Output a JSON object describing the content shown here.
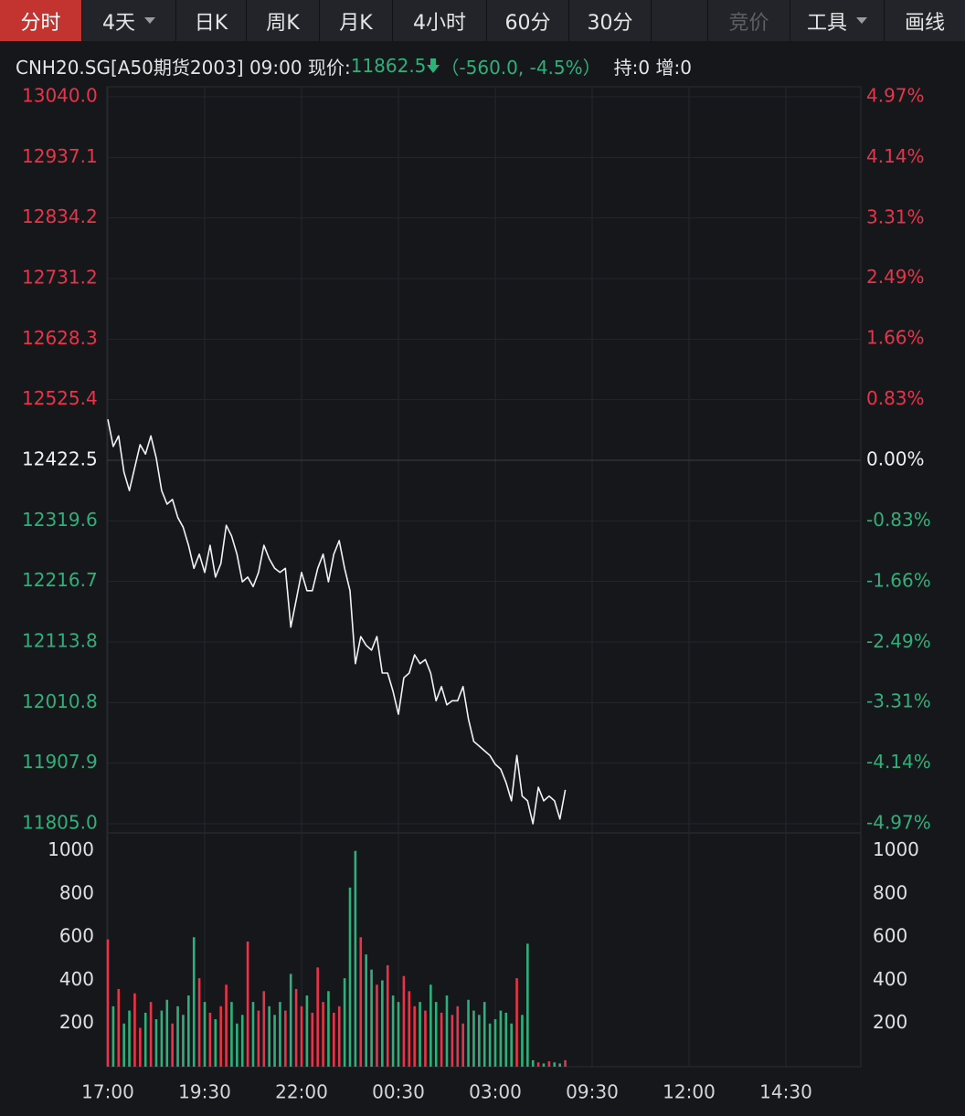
{
  "header": {
    "tabs": [
      "分时",
      "4天",
      "日K",
      "周K",
      "月K",
      "4小时",
      "60分",
      "30分",
      "竞价",
      "工具",
      "画线"
    ],
    "symbol_line": "CNH20.SG[A50期货2003] 09:00 现价:",
    "price": "11862.5",
    "change": "（-560.0, -4.5%）",
    "position": "持:0 增:0"
  },
  "chart_data": [
    {
      "type": "line",
      "color": "#f2f2f2",
      "up_color": "#e8344a",
      "down_color": "#2fb07a",
      "flat_color": "#f0f0f0",
      "grid": true,
      "values": [
        12492,
        12446,
        12464,
        12402,
        12371,
        12410,
        12449,
        12433,
        12464,
        12426,
        12371,
        12348,
        12356,
        12325,
        12309,
        12278,
        12239,
        12263,
        12232,
        12278,
        12224,
        12247,
        12312,
        12294,
        12263,
        12216,
        12224,
        12208,
        12232,
        12278,
        12255,
        12239,
        12232,
        12239,
        12139,
        12185,
        12232,
        12201,
        12201,
        12239,
        12263,
        12216,
        12263,
        12286,
        12239,
        12201,
        12077,
        12123,
        12108,
        12100,
        12123,
        12061,
        12061,
        12030,
        11991,
        12053,
        12061,
        12092,
        12077,
        12084,
        12061,
        12014,
        12038,
        12007,
        12014,
        12014,
        12038,
        11983,
        11945,
        11937,
        11929,
        11921,
        11906,
        11898,
        11875,
        11844,
        11921,
        11852,
        11844,
        11805,
        11867,
        11844,
        11852,
        11844,
        11813,
        11862.5
      ],
      "ylim": [
        11805,
        13040
      ],
      "yticks": [
        {
          "value": 13040,
          "label": "13040.0"
        },
        {
          "value": 12937.1,
          "label": "12937.1"
        },
        {
          "value": 12834.2,
          "label": "12834.2"
        },
        {
          "value": 12731.2,
          "label": "12731.2"
        },
        {
          "value": 12628.3,
          "label": "12628.3"
        },
        {
          "value": 12525.4,
          "label": "12525.4"
        },
        {
          "value": 12422.5,
          "label": "12422.5"
        },
        {
          "value": 12319.6,
          "label": "12319.6"
        },
        {
          "value": 12216.7,
          "label": "12216.7"
        },
        {
          "value": 12113.8,
          "label": "12113.8"
        },
        {
          "value": 12010.8,
          "label": "12010.8"
        },
        {
          "value": 11907.9,
          "label": "11907.9"
        },
        {
          "value": 11805,
          "label": "11805.0"
        }
      ],
      "y2lim": [
        -4.97,
        4.97
      ],
      "y2ticks": [
        {
          "value": 4.97,
          "label": "4.97%"
        },
        {
          "value": 4.14,
          "label": "4.14%"
        },
        {
          "value": 3.31,
          "label": "3.31%"
        },
        {
          "value": 2.49,
          "label": "2.49%"
        },
        {
          "value": 1.66,
          "label": "1.66%"
        },
        {
          "value": 0.83,
          "label": "0.83%"
        },
        {
          "value": 0,
          "label": "0.00%"
        },
        {
          "value": -0.83,
          "label": "-0.83%"
        },
        {
          "value": -1.66,
          "label": "-1.66%"
        },
        {
          "value": -2.49,
          "label": "-2.49%"
        },
        {
          "value": -3.31,
          "label": "-3.31%"
        },
        {
          "value": -4.14,
          "label": "-4.14%"
        },
        {
          "value": -4.97,
          "label": "-4.97%"
        }
      ]
    },
    {
      "type": "bar",
      "values": [
        590,
        280,
        360,
        200,
        260,
        340,
        180,
        250,
        300,
        220,
        260,
        310,
        200,
        280,
        240,
        330,
        600,
        410,
        300,
        250,
        220,
        280,
        380,
        300,
        200,
        240,
        580,
        300,
        260,
        350,
        280,
        240,
        300,
        260,
        430,
        360,
        280,
        330,
        250,
        460,
        300,
        350,
        250,
        280,
        410,
        830,
        1000,
        600,
        520,
        450,
        380,
        400,
        470,
        330,
        300,
        420,
        350,
        280,
        300,
        260,
        380,
        300,
        250,
        330,
        240,
        280,
        200,
        310,
        260,
        240,
        300,
        200,
        220,
        260,
        250,
        200,
        410,
        240,
        570,
        30,
        20,
        15,
        25,
        20,
        15,
        30
      ],
      "ylim": [
        0,
        1075
      ],
      "yticks": [
        200,
        400,
        600,
        800,
        1000
      ],
      "xticks": [
        "17:00",
        "19:30",
        "22:00",
        "00:30",
        "03:00",
        "09:30",
        "12:00",
        "14:30"
      ]
    }
  ]
}
